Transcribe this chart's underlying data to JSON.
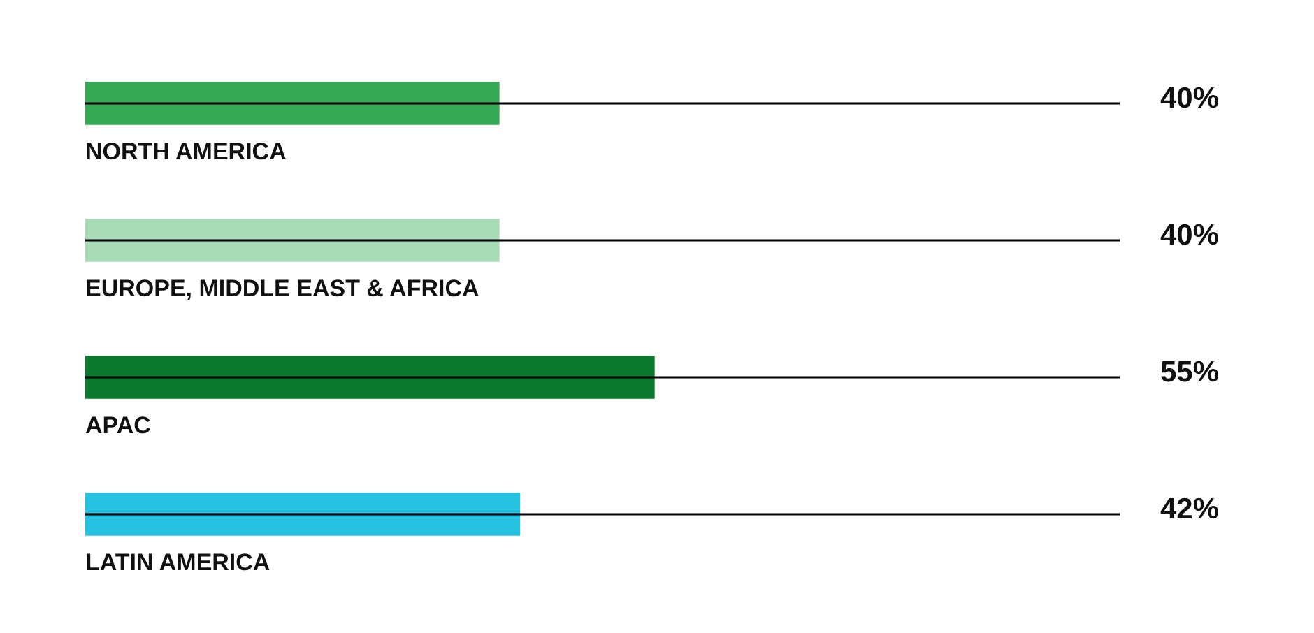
{
  "chart_data": {
    "type": "bar",
    "orientation": "horizontal",
    "categories": [
      "NORTH AMERICA",
      "EUROPE, MIDDLE EAST & AFRICA",
      "APAC",
      "LATIN AMERICA"
    ],
    "values": [
      40,
      40,
      55,
      42
    ],
    "colors": [
      "#34a853",
      "#a8dab5",
      "#0b7a2e",
      "#24c1e0"
    ],
    "xlim": [
      0,
      100
    ],
    "data_labels": true,
    "value_labels": [
      "40%",
      "40%",
      "55%",
      "42%"
    ],
    "legend": false
  }
}
